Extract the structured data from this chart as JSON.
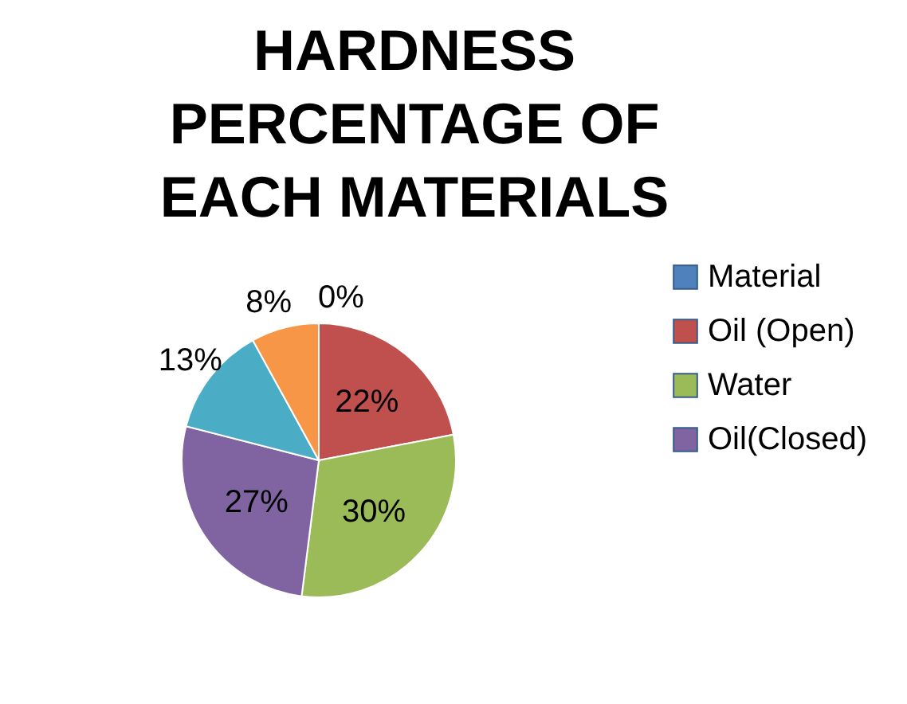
{
  "chart_data": {
    "type": "pie",
    "title": "HARDNESS PERCENTAGE OF EACH MATERIALS",
    "categories": [
      "Material",
      "Oil (Open)",
      "Water",
      "Oil(Closed)",
      null,
      null
    ],
    "values": [
      0,
      22,
      30,
      27,
      13,
      8
    ],
    "colors": [
      "#4f81bd",
      "#c0504d",
      "#9bbb59",
      "#8064a2",
      "#4bacc6",
      "#f79646"
    ],
    "value_labels": [
      "0%",
      "22%",
      "30%",
      "27%",
      "13%",
      "8%"
    ],
    "legend": "right"
  }
}
